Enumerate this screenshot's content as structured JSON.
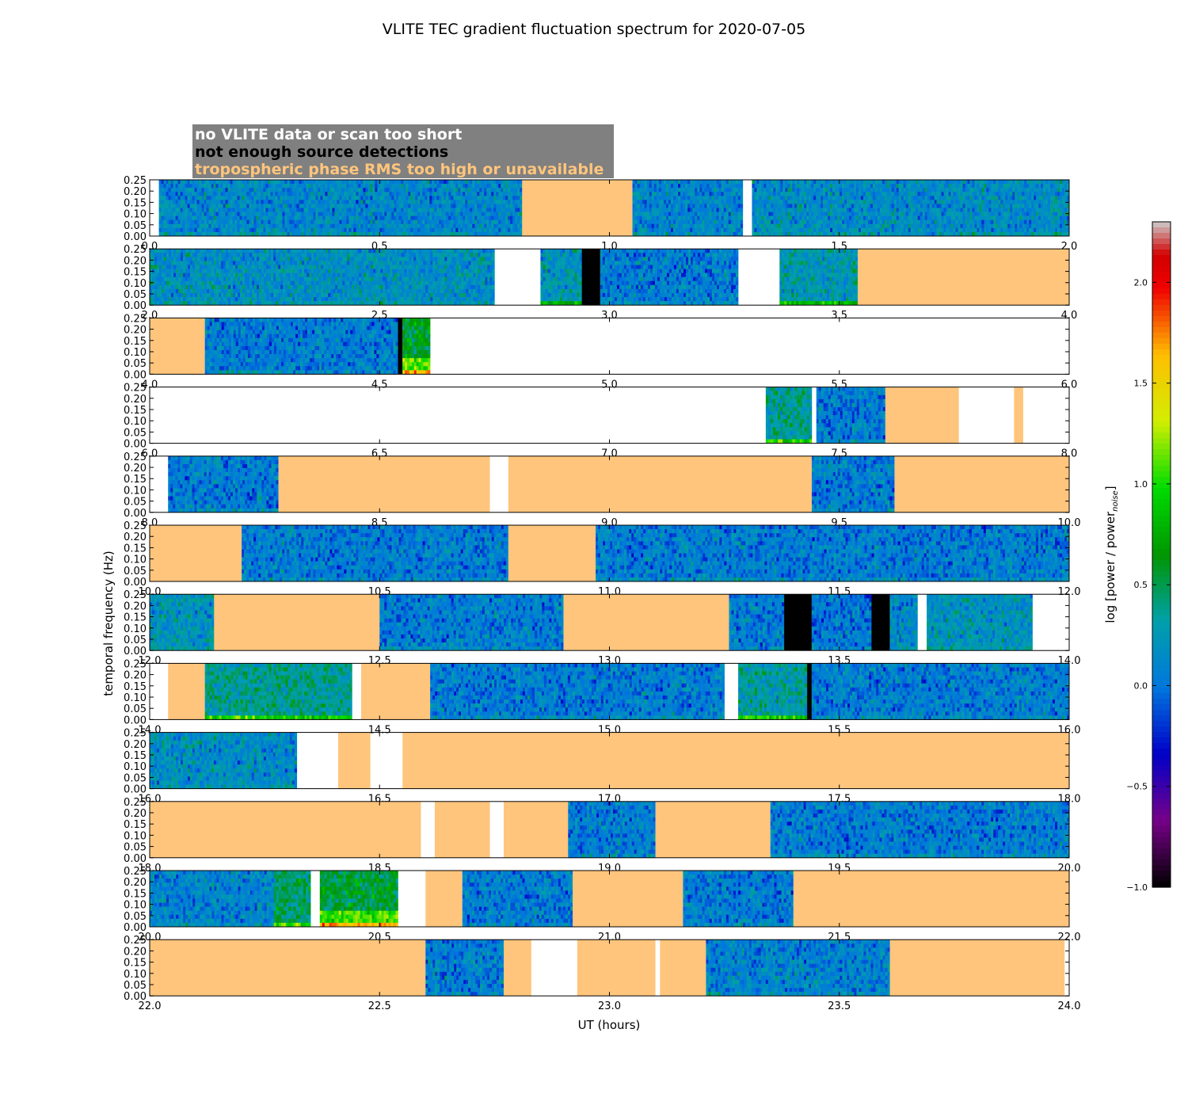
{
  "figure": {
    "title": "VLITE TEC gradient fluctuation spectrum for 2020-07-05"
  },
  "legend": {
    "items": [
      {
        "label": "no VLITE data or scan too short",
        "text_color": "#ffffff"
      },
      {
        "label": "not enough source detections",
        "text_color": "#000000"
      },
      {
        "label": "tropospheric phase RMS too high or unavailable",
        "text_color": "#ffc57c"
      }
    ],
    "background": "#808080"
  },
  "colors": {
    "no_data": "#ffffff",
    "few_sources": "#000000",
    "tropo": "#ffc57c"
  },
  "chart_data": {
    "type": "heatmap",
    "title": "VLITE TEC gradient fluctuation spectrum for 2020-07-05",
    "xlabel": "UT (hours)",
    "ylabel": "temporal frequency (Hz)",
    "ylim": [
      0,
      0.25
    ],
    "y_ticks": [
      "0.00",
      "0.05",
      "0.10",
      "0.15",
      "0.20",
      "0.25"
    ],
    "colorbar": {
      "label": "log [power / power",
      "label_sub": "noise",
      "label_close": "]",
      "range": [
        -1.0,
        2.3
      ],
      "ticks": [
        "−1.0",
        "−0.5",
        "0.0",
        "0.5",
        "1.0",
        "1.5",
        "2.0"
      ],
      "colormap": "nipy_spectral"
    },
    "panels": [
      {
        "xlim": [
          0,
          2
        ],
        "ticks": [
          "0.0",
          "0.5",
          "1.0",
          "1.5",
          "2.0"
        ],
        "segments": [
          {
            "start": 0.0,
            "end": 0.02,
            "kind": "none"
          },
          {
            "start": 0.02,
            "end": 0.81,
            "kind": "data",
            "level": 0.12
          },
          {
            "start": 0.81,
            "end": 1.05,
            "kind": "tropo"
          },
          {
            "start": 1.05,
            "end": 1.29,
            "kind": "data",
            "level": 0.1
          },
          {
            "start": 1.29,
            "end": 1.31,
            "kind": "none"
          },
          {
            "start": 1.31,
            "end": 2.0,
            "kind": "data",
            "level": 0.15
          }
        ]
      },
      {
        "xlim": [
          2,
          4
        ],
        "ticks": [
          "2.0",
          "2.5",
          "3.0",
          "3.5",
          "4.0"
        ],
        "segments": [
          {
            "start": 2.0,
            "end": 2.75,
            "kind": "data",
            "level": 0.18
          },
          {
            "start": 2.75,
            "end": 2.85,
            "kind": "none"
          },
          {
            "start": 2.85,
            "end": 2.94,
            "kind": "data",
            "level": 0.22
          },
          {
            "start": 2.94,
            "end": 2.98,
            "kind": "few"
          },
          {
            "start": 2.98,
            "end": 3.28,
            "kind": "data",
            "level": 0.05
          },
          {
            "start": 3.28,
            "end": 3.37,
            "kind": "none"
          },
          {
            "start": 3.37,
            "end": 3.54,
            "kind": "data",
            "level": 0.25
          },
          {
            "start": 3.54,
            "end": 4.0,
            "kind": "tropo"
          }
        ]
      },
      {
        "xlim": [
          4,
          6
        ],
        "ticks": [
          "4.0",
          "4.5",
          "5.0",
          "5.5",
          "6.0"
        ],
        "segments": [
          {
            "start": 4.0,
            "end": 4.12,
            "kind": "tropo"
          },
          {
            "start": 4.12,
            "end": 4.54,
            "kind": "data",
            "level": 0.05
          },
          {
            "start": 4.54,
            "end": 4.55,
            "kind": "few"
          },
          {
            "start": 4.55,
            "end": 4.61,
            "kind": "data",
            "level": 0.6
          },
          {
            "start": 4.61,
            "end": 6.0,
            "kind": "none"
          }
        ]
      },
      {
        "xlim": [
          6,
          8
        ],
        "ticks": [
          "6.0",
          "6.5",
          "7.0",
          "7.5",
          "8.0"
        ],
        "segments": [
          {
            "start": 6.0,
            "end": 7.34,
            "kind": "none"
          },
          {
            "start": 7.34,
            "end": 7.44,
            "kind": "data",
            "level": 0.35
          },
          {
            "start": 7.44,
            "end": 7.45,
            "kind": "none"
          },
          {
            "start": 7.45,
            "end": 7.6,
            "kind": "data",
            "level": 0.05
          },
          {
            "start": 7.6,
            "end": 7.76,
            "kind": "tropo"
          },
          {
            "start": 7.76,
            "end": 7.88,
            "kind": "none"
          },
          {
            "start": 7.88,
            "end": 7.9,
            "kind": "tropo"
          },
          {
            "start": 7.9,
            "end": 8.0,
            "kind": "none"
          }
        ]
      },
      {
        "xlim": [
          8,
          10
        ],
        "ticks": [
          "8.0",
          "8.5",
          "9.0",
          "9.5",
          "10.0"
        ],
        "segments": [
          {
            "start": 8.0,
            "end": 8.04,
            "kind": "none"
          },
          {
            "start": 8.04,
            "end": 8.28,
            "kind": "data",
            "level": 0.05
          },
          {
            "start": 8.28,
            "end": 8.74,
            "kind": "tropo"
          },
          {
            "start": 8.74,
            "end": 8.78,
            "kind": "none"
          },
          {
            "start": 8.78,
            "end": 9.44,
            "kind": "tropo"
          },
          {
            "start": 9.44,
            "end": 9.62,
            "kind": "data",
            "level": 0.05
          },
          {
            "start": 9.62,
            "end": 10.0,
            "kind": "tropo"
          }
        ]
      },
      {
        "xlim": [
          10,
          12
        ],
        "ticks": [
          "10.0",
          "10.5",
          "11.0",
          "11.5",
          "12.0"
        ],
        "segments": [
          {
            "start": 10.0,
            "end": 10.2,
            "kind": "tropo"
          },
          {
            "start": 10.2,
            "end": 10.78,
            "kind": "data",
            "level": 0.05
          },
          {
            "start": 10.78,
            "end": 10.97,
            "kind": "tropo"
          },
          {
            "start": 10.97,
            "end": 12.0,
            "kind": "data",
            "level": 0.05
          }
        ]
      },
      {
        "xlim": [
          12,
          14
        ],
        "ticks": [
          "12.0",
          "12.5",
          "13.0",
          "13.5",
          "14.0"
        ],
        "segments": [
          {
            "start": 12.0,
            "end": 12.14,
            "kind": "data",
            "level": 0.2
          },
          {
            "start": 12.14,
            "end": 12.5,
            "kind": "tropo"
          },
          {
            "start": 12.5,
            "end": 12.9,
            "kind": "data",
            "level": 0.05
          },
          {
            "start": 12.9,
            "end": 13.26,
            "kind": "tropo"
          },
          {
            "start": 13.26,
            "end": 13.38,
            "kind": "data",
            "level": 0.05
          },
          {
            "start": 13.38,
            "end": 13.44,
            "kind": "few"
          },
          {
            "start": 13.44,
            "end": 13.57,
            "kind": "data",
            "level": 0.02
          },
          {
            "start": 13.57,
            "end": 13.61,
            "kind": "few"
          },
          {
            "start": 13.61,
            "end": 13.67,
            "kind": "data",
            "level": 0.15
          },
          {
            "start": 13.67,
            "end": 13.69,
            "kind": "none"
          },
          {
            "start": 13.69,
            "end": 13.92,
            "kind": "data",
            "level": 0.2
          },
          {
            "start": 13.92,
            "end": 14.0,
            "kind": "none"
          }
        ]
      },
      {
        "xlim": [
          14,
          16
        ],
        "ticks": [
          "14.0",
          "14.5",
          "15.0",
          "15.5",
          "16.0"
        ],
        "segments": [
          {
            "start": 14.0,
            "end": 14.04,
            "kind": "none"
          },
          {
            "start": 14.04,
            "end": 14.12,
            "kind": "tropo"
          },
          {
            "start": 14.12,
            "end": 14.44,
            "kind": "data",
            "level": 0.35
          },
          {
            "start": 14.44,
            "end": 14.46,
            "kind": "none"
          },
          {
            "start": 14.46,
            "end": 14.61,
            "kind": "tropo"
          },
          {
            "start": 14.61,
            "end": 15.25,
            "kind": "data",
            "level": 0.05
          },
          {
            "start": 15.25,
            "end": 15.28,
            "kind": "none"
          },
          {
            "start": 15.28,
            "end": 15.43,
            "kind": "data",
            "level": 0.3
          },
          {
            "start": 15.43,
            "end": 15.44,
            "kind": "few"
          },
          {
            "start": 15.44,
            "end": 16.0,
            "kind": "data",
            "level": 0.05
          }
        ]
      },
      {
        "xlim": [
          16,
          18
        ],
        "ticks": [
          "16.0",
          "16.5",
          "17.0",
          "17.5",
          "18.0"
        ],
        "segments": [
          {
            "start": 16.0,
            "end": 16.32,
            "kind": "data",
            "level": 0.15
          },
          {
            "start": 16.32,
            "end": 16.41,
            "kind": "none"
          },
          {
            "start": 16.41,
            "end": 16.48,
            "kind": "tropo"
          },
          {
            "start": 16.48,
            "end": 16.55,
            "kind": "none"
          },
          {
            "start": 16.55,
            "end": 18.0,
            "kind": "tropo"
          }
        ]
      },
      {
        "xlim": [
          18,
          20
        ],
        "ticks": [
          "18.0",
          "18.5",
          "19.0",
          "19.5",
          "20.0"
        ],
        "segments": [
          {
            "start": 18.0,
            "end": 18.59,
            "kind": "tropo"
          },
          {
            "start": 18.59,
            "end": 18.62,
            "kind": "none"
          },
          {
            "start": 18.62,
            "end": 18.74,
            "kind": "tropo"
          },
          {
            "start": 18.74,
            "end": 18.77,
            "kind": "none"
          },
          {
            "start": 18.77,
            "end": 18.91,
            "kind": "tropo"
          },
          {
            "start": 18.91,
            "end": 19.1,
            "kind": "data",
            "level": 0.05
          },
          {
            "start": 19.1,
            "end": 19.35,
            "kind": "tropo"
          },
          {
            "start": 19.35,
            "end": 20.0,
            "kind": "data",
            "level": 0.05
          }
        ]
      },
      {
        "xlim": [
          20,
          22
        ],
        "ticks": [
          "20.0",
          "20.5",
          "21.0",
          "21.5",
          "22.0"
        ],
        "segments": [
          {
            "start": 20.0,
            "end": 20.27,
            "kind": "data",
            "level": 0.1
          },
          {
            "start": 20.27,
            "end": 20.35,
            "kind": "data",
            "level": 0.45
          },
          {
            "start": 20.35,
            "end": 20.37,
            "kind": "none"
          },
          {
            "start": 20.37,
            "end": 20.54,
            "kind": "data",
            "level": 0.55
          },
          {
            "start": 20.54,
            "end": 20.6,
            "kind": "none"
          },
          {
            "start": 20.6,
            "end": 20.68,
            "kind": "tropo"
          },
          {
            "start": 20.68,
            "end": 20.92,
            "kind": "data",
            "level": 0.05
          },
          {
            "start": 20.92,
            "end": 21.16,
            "kind": "tropo"
          },
          {
            "start": 21.16,
            "end": 21.4,
            "kind": "data",
            "level": 0.05
          },
          {
            "start": 21.4,
            "end": 22.0,
            "kind": "tropo"
          }
        ]
      },
      {
        "xlim": [
          22,
          24
        ],
        "ticks": [
          "22.0",
          "22.5",
          "23.0",
          "23.5",
          "24.0"
        ],
        "segments": [
          {
            "start": 22.0,
            "end": 22.6,
            "kind": "tropo"
          },
          {
            "start": 22.6,
            "end": 22.77,
            "kind": "data",
            "level": 0.05
          },
          {
            "start": 22.77,
            "end": 22.83,
            "kind": "tropo"
          },
          {
            "start": 22.83,
            "end": 22.93,
            "kind": "none"
          },
          {
            "start": 22.93,
            "end": 23.1,
            "kind": "tropo"
          },
          {
            "start": 23.1,
            "end": 23.11,
            "kind": "none"
          },
          {
            "start": 23.11,
            "end": 23.21,
            "kind": "tropo"
          },
          {
            "start": 23.21,
            "end": 23.61,
            "kind": "data",
            "level": 0.08
          },
          {
            "start": 23.61,
            "end": 23.99,
            "kind": "tropo"
          },
          {
            "start": 23.99,
            "end": 24.0,
            "kind": "none"
          }
        ]
      }
    ]
  }
}
